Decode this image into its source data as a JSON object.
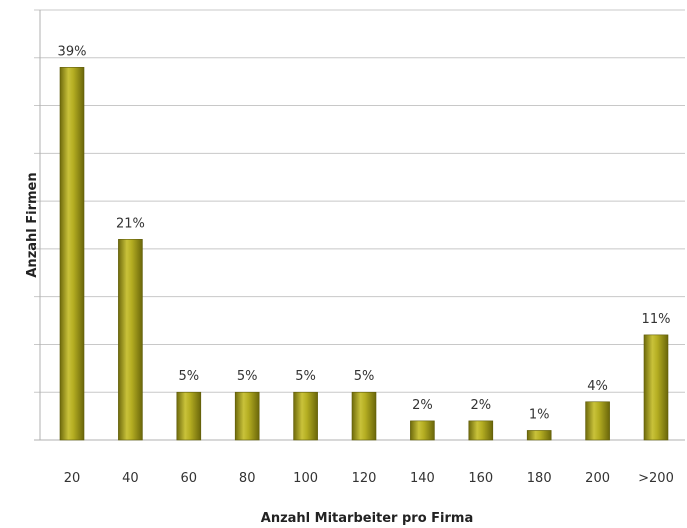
{
  "chart_data": {
    "type": "bar",
    "xlabel": "Anzahl Mitarbeiter pro Firma",
    "ylabel": "Anzahl Firmen",
    "categories": [
      "20",
      "40",
      "60",
      "80",
      "100",
      "120",
      "140",
      "160",
      "180",
      "200",
      ">200"
    ],
    "values": [
      39,
      21,
      5,
      5,
      5,
      5,
      2,
      2,
      1,
      4,
      11
    ],
    "data_labels": [
      "39%",
      "21%",
      "5%",
      "5%",
      "5%",
      "5%",
      "2%",
      "2%",
      "1%",
      "4%",
      "11%"
    ],
    "ylim": [
      0,
      45
    ],
    "grid": true,
    "bar_color": "#9a9418"
  }
}
